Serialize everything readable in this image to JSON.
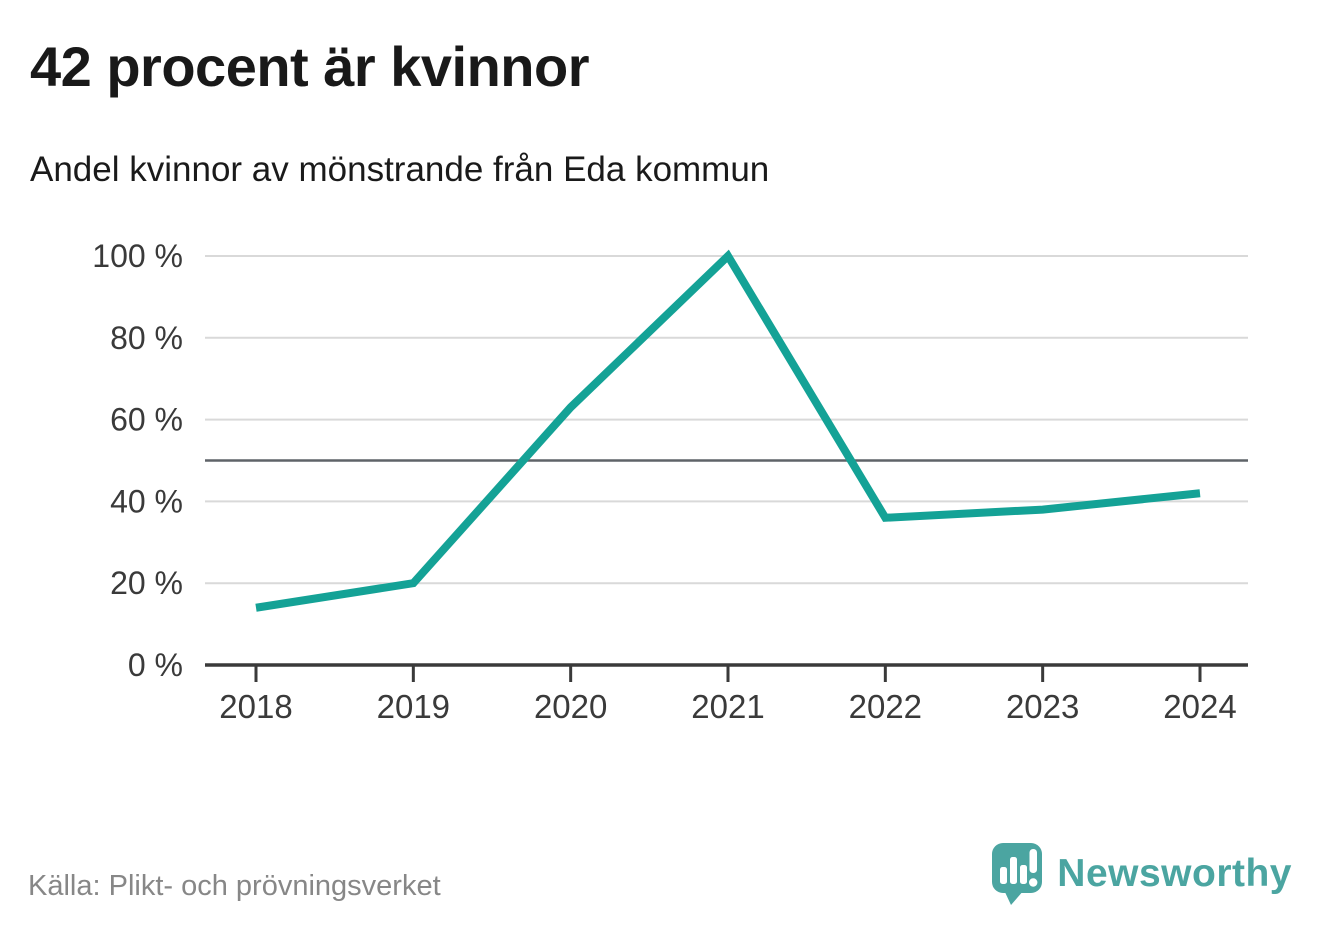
{
  "header": {
    "title": "42 procent är kvinnor",
    "subtitle": "Andel kvinnor av mönstrande från Eda kommun"
  },
  "chart_data": {
    "type": "line",
    "title": "42 procent är kvinnor",
    "subtitle": "Andel kvinnor av mönstrande från Eda kommun",
    "x": [
      2018,
      2019,
      2020,
      2021,
      2022,
      2023,
      2024
    ],
    "series": [
      {
        "name": "Andel kvinnor av mönstrande, Eda kommun",
        "values": [
          14,
          20,
          63,
          100,
          36,
          38,
          42
        ]
      }
    ],
    "unit": "%",
    "ylim": [
      0,
      100
    ],
    "yticks": [
      0,
      20,
      40,
      60,
      80,
      100
    ],
    "ytick_label_suffix": " %",
    "xtick_labels": [
      "2018",
      "2019",
      "2020",
      "2021",
      "2022",
      "2023",
      "2024"
    ],
    "reference_line_y": 50,
    "grid": "horizontal",
    "legend": "none",
    "latest_value_pct": 42
  },
  "footer": {
    "source": "Källa: Plikt- och prövningsverket",
    "brand": "Newsworthy"
  },
  "colors": {
    "line": "#14a296",
    "brand": "#4ba5a1",
    "grid": "#d9d9d9",
    "reference": "#5f6368",
    "axis": "#3a3a3a",
    "tick_label": "#3a3a3a",
    "source_text": "#878787"
  }
}
